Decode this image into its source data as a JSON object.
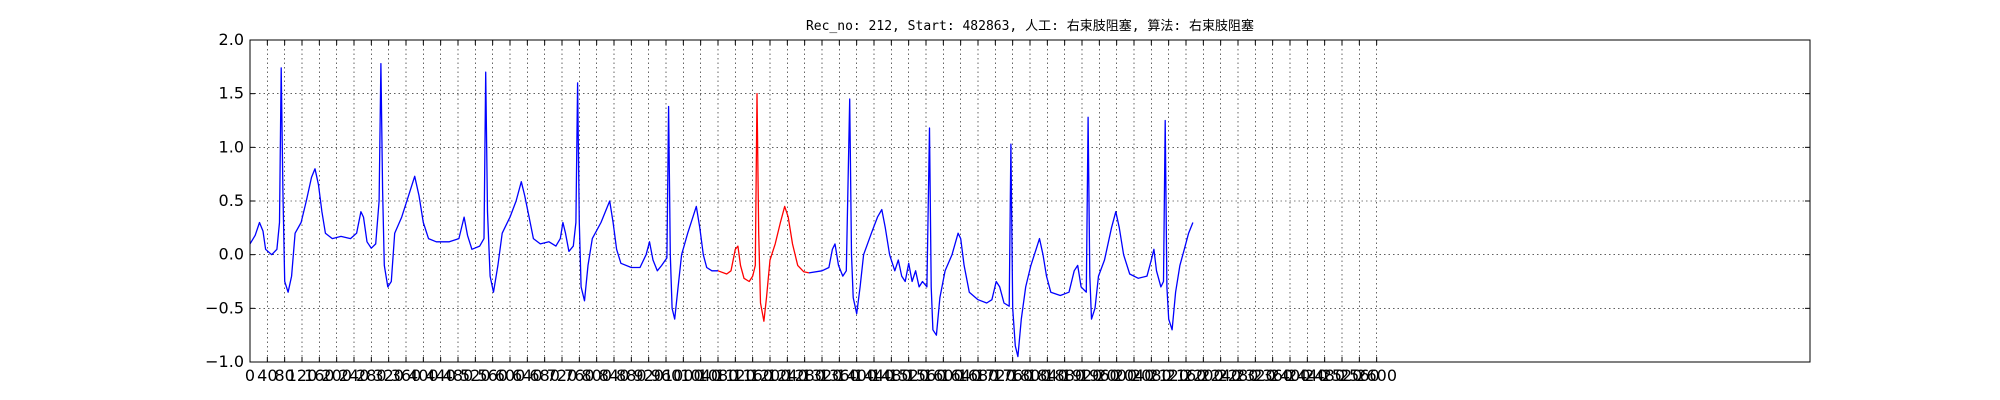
{
  "chart_data": {
    "type": "line",
    "title": "Rec_no: 212, Start: 482863, 人工: 右束肢阻塞, 算法: 右束肢阻塞",
    "xlabel": "",
    "ylabel": "",
    "xlim": [
      0,
      3600
    ],
    "ylim": [
      -1.0,
      2.0
    ],
    "grid": true,
    "x_tick_values": [
      0,
      40,
      80,
      120,
      160,
      200,
      240,
      280,
      320,
      360,
      400,
      440,
      480,
      520,
      560,
      600,
      640,
      680,
      720,
      760,
      800,
      840,
      880,
      920,
      960,
      1000,
      1040,
      1080,
      1120,
      1160,
      1200,
      1240,
      1280,
      1320,
      1360,
      1400,
      1440,
      1480,
      1520,
      1560,
      1600,
      1640,
      1680,
      1720,
      1760,
      1800,
      1840,
      1880,
      1920,
      1960,
      2000,
      2040,
      2080,
      2120,
      2160,
      2200,
      2240,
      2280,
      2320,
      2360,
      2400,
      2440,
      2480,
      2520,
      2560,
      2600
    ],
    "x_tick_labels": [
      "0",
      "40",
      "80",
      "120",
      "160",
      "200",
      "240",
      "280",
      "320",
      "360",
      "400",
      "440",
      "480",
      "520",
      "560",
      "600",
      "640",
      "680",
      "720",
      "760",
      "800",
      "840",
      "880",
      "920",
      "960",
      "1000",
      "1040",
      "1080",
      "1120",
      "1160",
      "1200",
      "1240",
      "1280",
      "1320",
      "1360",
      "1400",
      "1440",
      "1480",
      "1520",
      "1560",
      "1600",
      "1640",
      "1680",
      "1720",
      "1760",
      "1800",
      "1840",
      "1880",
      "1920",
      "1960",
      "2000",
      "2040",
      "2080",
      "2120",
      "2160",
      "2200",
      "2240",
      "2280",
      "2320",
      "2360",
      "2400",
      "2440",
      "2480",
      "2520",
      "2560",
      "2600"
    ],
    "y_tick_values": [
      -1.0,
      -0.5,
      0.0,
      0.5,
      1.0,
      1.5,
      2.0
    ],
    "y_tick_labels": [
      "−1.0",
      "−0.5",
      "0.0",
      "0.5",
      "1.0",
      "1.5",
      "2.0"
    ],
    "series": [
      {
        "color": "#0000ff",
        "points": [
          [
            0,
            0.1
          ],
          [
            12,
            0.18
          ],
          [
            22,
            0.3
          ],
          [
            30,
            0.22
          ],
          [
            36,
            0.05
          ],
          [
            50,
            0.0
          ],
          [
            62,
            0.05
          ],
          [
            68,
            0.3
          ],
          [
            72,
            1.74
          ],
          [
            76,
            0.6
          ],
          [
            80,
            -0.25
          ],
          [
            88,
            -0.35
          ],
          [
            96,
            -0.2
          ],
          [
            104,
            0.2
          ],
          [
            118,
            0.3
          ],
          [
            130,
            0.5
          ],
          [
            142,
            0.72
          ],
          [
            150,
            0.8
          ],
          [
            158,
            0.65
          ],
          [
            166,
            0.4
          ],
          [
            174,
            0.2
          ],
          [
            190,
            0.15
          ],
          [
            210,
            0.17
          ],
          [
            232,
            0.15
          ],
          [
            246,
            0.2
          ],
          [
            256,
            0.4
          ],
          [
            262,
            0.35
          ],
          [
            270,
            0.12
          ],
          [
            280,
            0.06
          ],
          [
            290,
            0.1
          ],
          [
            298,
            0.5
          ],
          [
            302,
            1.78
          ],
          [
            306,
            0.6
          ],
          [
            310,
            -0.1
          ],
          [
            318,
            -0.3
          ],
          [
            326,
            -0.25
          ],
          [
            334,
            0.2
          ],
          [
            350,
            0.35
          ],
          [
            366,
            0.55
          ],
          [
            380,
            0.73
          ],
          [
            390,
            0.55
          ],
          [
            400,
            0.3
          ],
          [
            412,
            0.15
          ],
          [
            430,
            0.12
          ],
          [
            460,
            0.12
          ],
          [
            482,
            0.15
          ],
          [
            494,
            0.35
          ],
          [
            502,
            0.18
          ],
          [
            512,
            0.05
          ],
          [
            530,
            0.08
          ],
          [
            540,
            0.15
          ],
          [
            544,
            1.7
          ],
          [
            548,
            0.4
          ],
          [
            554,
            -0.2
          ],
          [
            562,
            -0.35
          ],
          [
            572,
            -0.1
          ],
          [
            582,
            0.2
          ],
          [
            600,
            0.35
          ],
          [
            614,
            0.5
          ],
          [
            626,
            0.68
          ],
          [
            634,
            0.55
          ],
          [
            644,
            0.35
          ],
          [
            654,
            0.15
          ],
          [
            670,
            0.1
          ],
          [
            690,
            0.12
          ],
          [
            706,
            0.08
          ],
          [
            716,
            0.15
          ],
          [
            722,
            0.3
          ],
          [
            728,
            0.2
          ],
          [
            736,
            0.03
          ],
          [
            746,
            0.08
          ],
          [
            752,
            0.3
          ],
          [
            756,
            1.6
          ],
          [
            760,
            0.3
          ],
          [
            764,
            -0.3
          ],
          [
            772,
            -0.43
          ],
          [
            780,
            -0.1
          ],
          [
            790,
            0.15
          ],
          [
            810,
            0.3
          ],
          [
            822,
            0.42
          ],
          [
            830,
            0.5
          ],
          [
            838,
            0.3
          ],
          [
            846,
            0.05
          ],
          [
            856,
            -0.08
          ],
          [
            880,
            -0.12
          ],
          [
            900,
            -0.12
          ],
          [
            914,
            0.0
          ],
          [
            922,
            0.12
          ],
          [
            930,
            -0.05
          ],
          [
            940,
            -0.15
          ],
          [
            950,
            -0.1
          ],
          [
            962,
            -0.03
          ],
          [
            966,
            1.38
          ],
          [
            970,
            0.0
          ],
          [
            974,
            -0.5
          ],
          [
            980,
            -0.6
          ],
          [
            988,
            -0.3
          ],
          [
            996,
            0.0
          ],
          [
            1010,
            0.2
          ],
          [
            1022,
            0.35
          ],
          [
            1030,
            0.45
          ],
          [
            1038,
            0.25
          ],
          [
            1046,
            0.0
          ],
          [
            1054,
            -0.12
          ],
          [
            1066,
            -0.15
          ],
          [
            1080,
            -0.15
          ]
        ]
      },
      {
        "color": "#ff0000",
        "points": [
          [
            1080,
            -0.15
          ],
          [
            1100,
            -0.18
          ],
          [
            1110,
            -0.15
          ],
          [
            1120,
            0.05
          ],
          [
            1126,
            0.08
          ],
          [
            1132,
            -0.1
          ],
          [
            1140,
            -0.22
          ],
          [
            1152,
            -0.25
          ],
          [
            1160,
            -0.2
          ],
          [
            1166,
            -0.1
          ],
          [
            1170,
            1.5
          ],
          [
            1174,
            0.2
          ],
          [
            1178,
            -0.45
          ],
          [
            1186,
            -0.62
          ],
          [
            1192,
            -0.4
          ],
          [
            1200,
            -0.05
          ],
          [
            1212,
            0.1
          ],
          [
            1224,
            0.3
          ],
          [
            1234,
            0.45
          ],
          [
            1242,
            0.35
          ],
          [
            1252,
            0.1
          ],
          [
            1264,
            -0.1
          ],
          [
            1278,
            -0.16
          ],
          [
            1290,
            -0.17
          ]
        ]
      },
      {
        "color": "#0000ff",
        "points": [
          [
            1290,
            -0.17
          ],
          [
            1320,
            -0.15
          ],
          [
            1336,
            -0.12
          ],
          [
            1344,
            0.05
          ],
          [
            1350,
            0.1
          ],
          [
            1358,
            -0.1
          ],
          [
            1368,
            -0.2
          ],
          [
            1376,
            -0.15
          ],
          [
            1384,
            1.45
          ],
          [
            1388,
            0.0
          ],
          [
            1392,
            -0.4
          ],
          [
            1400,
            -0.55
          ],
          [
            1408,
            -0.3
          ],
          [
            1416,
            0.0
          ],
          [
            1434,
            0.2
          ],
          [
            1448,
            0.35
          ],
          [
            1458,
            0.42
          ],
          [
            1466,
            0.25
          ],
          [
            1476,
            0.0
          ],
          [
            1488,
            -0.15
          ],
          [
            1496,
            -0.05
          ],
          [
            1504,
            -0.2
          ],
          [
            1512,
            -0.25
          ],
          [
            1520,
            -0.08
          ],
          [
            1528,
            -0.25
          ],
          [
            1536,
            -0.15
          ],
          [
            1544,
            -0.3
          ],
          [
            1552,
            -0.25
          ],
          [
            1562,
            -0.3
          ],
          [
            1568,
            1.18
          ],
          [
            1572,
            -0.3
          ],
          [
            1576,
            -0.7
          ],
          [
            1584,
            -0.75
          ],
          [
            1592,
            -0.4
          ],
          [
            1604,
            -0.15
          ],
          [
            1620,
            0.0
          ],
          [
            1634,
            0.2
          ],
          [
            1640,
            0.15
          ],
          [
            1648,
            -0.1
          ],
          [
            1660,
            -0.35
          ],
          [
            1680,
            -0.42
          ],
          [
            1700,
            -0.45
          ],
          [
            1712,
            -0.42
          ],
          [
            1722,
            -0.25
          ],
          [
            1730,
            -0.3
          ],
          [
            1740,
            -0.45
          ],
          [
            1752,
            -0.48
          ],
          [
            1756,
            1.03
          ],
          [
            1760,
            -0.5
          ],
          [
            1766,
            -0.85
          ],
          [
            1772,
            -0.95
          ],
          [
            1780,
            -0.6
          ],
          [
            1790,
            -0.3
          ],
          [
            1802,
            -0.1
          ],
          [
            1814,
            0.05
          ],
          [
            1822,
            0.15
          ],
          [
            1830,
            0.0
          ],
          [
            1838,
            -0.2
          ],
          [
            1848,
            -0.35
          ],
          [
            1870,
            -0.38
          ],
          [
            1890,
            -0.35
          ],
          [
            1902,
            -0.15
          ],
          [
            1910,
            -0.1
          ],
          [
            1918,
            -0.3
          ],
          [
            1930,
            -0.35
          ],
          [
            1934,
            1.28
          ],
          [
            1938,
            -0.2
          ],
          [
            1942,
            -0.6
          ],
          [
            1950,
            -0.5
          ],
          [
            1958,
            -0.2
          ],
          [
            1972,
            -0.05
          ],
          [
            1988,
            0.25
          ],
          [
            1998,
            0.4
          ],
          [
            2006,
            0.25
          ],
          [
            2016,
            0.0
          ],
          [
            2030,
            -0.18
          ],
          [
            2050,
            -0.22
          ],
          [
            2070,
            -0.2
          ],
          [
            2080,
            -0.05
          ],
          [
            2086,
            0.05
          ],
          [
            2092,
            -0.15
          ],
          [
            2102,
            -0.3
          ],
          [
            2108,
            -0.25
          ],
          [
            2112,
            1.25
          ],
          [
            2116,
            -0.3
          ],
          [
            2120,
            -0.6
          ],
          [
            2128,
            -0.7
          ],
          [
            2136,
            -0.35
          ],
          [
            2146,
            -0.1
          ],
          [
            2156,
            0.05
          ],
          [
            2166,
            0.2
          ],
          [
            2176,
            0.3
          ]
        ]
      }
    ]
  }
}
